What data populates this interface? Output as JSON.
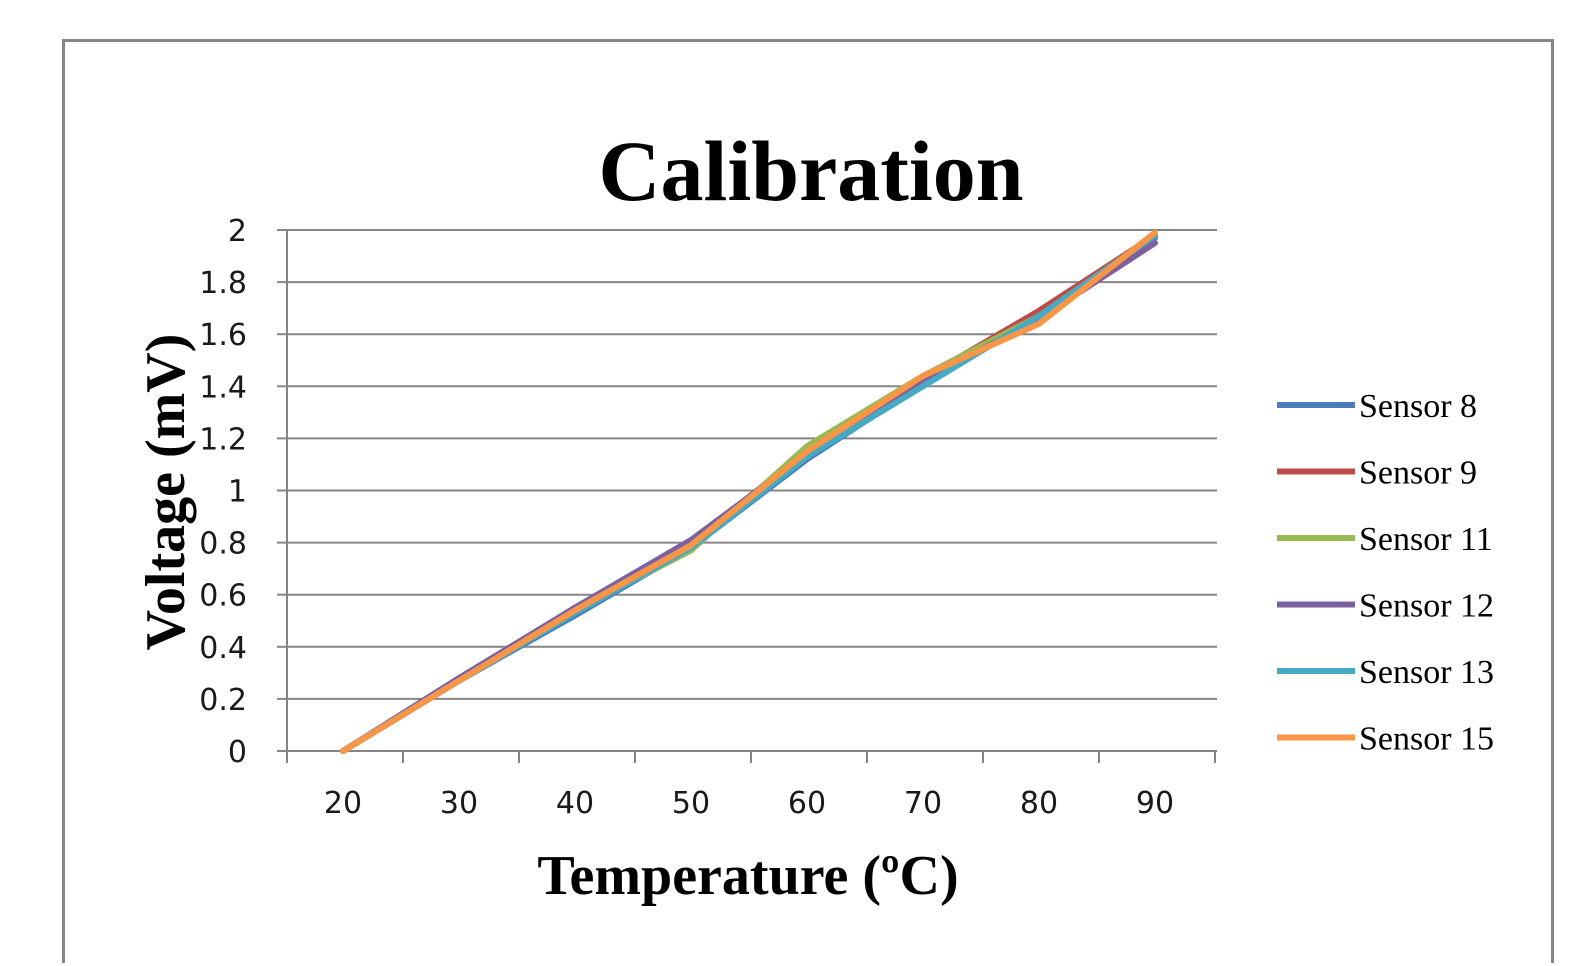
{
  "chart_data": {
    "type": "line",
    "title": "Calibration",
    "xlabel": "Temperature (ºC)",
    "ylabel": "Voltage (mV)",
    "x": [
      20,
      30,
      40,
      50,
      60,
      70,
      80,
      90
    ],
    "x_tick_labels": [
      "20",
      "30",
      "40",
      "50",
      "60",
      "70",
      "80",
      "90"
    ],
    "y_tick_labels": [
      "0",
      "0.2",
      "0.4",
      "0.6",
      "0.8",
      "1",
      "1.2",
      "1.4",
      "1.6",
      "1.8",
      "2"
    ],
    "ylim": [
      0,
      2
    ],
    "grid": "horizontal",
    "legend_position": "right",
    "series": [
      {
        "name": "Sensor 8",
        "color": "#4a7ebb",
        "values": [
          0,
          0.27,
          0.52,
          0.78,
          1.12,
          1.41,
          1.67,
          1.97
        ]
      },
      {
        "name": "Sensor 9",
        "color": "#be4b48",
        "values": [
          0,
          0.27,
          0.55,
          0.8,
          1.15,
          1.43,
          1.69,
          1.98
        ]
      },
      {
        "name": "Sensor 11",
        "color": "#98b954",
        "values": [
          0,
          0.27,
          0.54,
          0.77,
          1.17,
          1.44,
          1.67,
          1.98
        ]
      },
      {
        "name": "Sensor 12",
        "color": "#7d60a0",
        "values": [
          0,
          0.28,
          0.55,
          0.81,
          1.14,
          1.42,
          1.66,
          1.95
        ]
      },
      {
        "name": "Sensor 13",
        "color": "#46aac5",
        "values": [
          0,
          0.27,
          0.53,
          0.78,
          1.13,
          1.4,
          1.67,
          1.98
        ]
      },
      {
        "name": "Sensor 15",
        "color": "#f79646",
        "values": [
          0,
          0.27,
          0.54,
          0.79,
          1.15,
          1.44,
          1.64,
          1.99
        ]
      }
    ]
  }
}
